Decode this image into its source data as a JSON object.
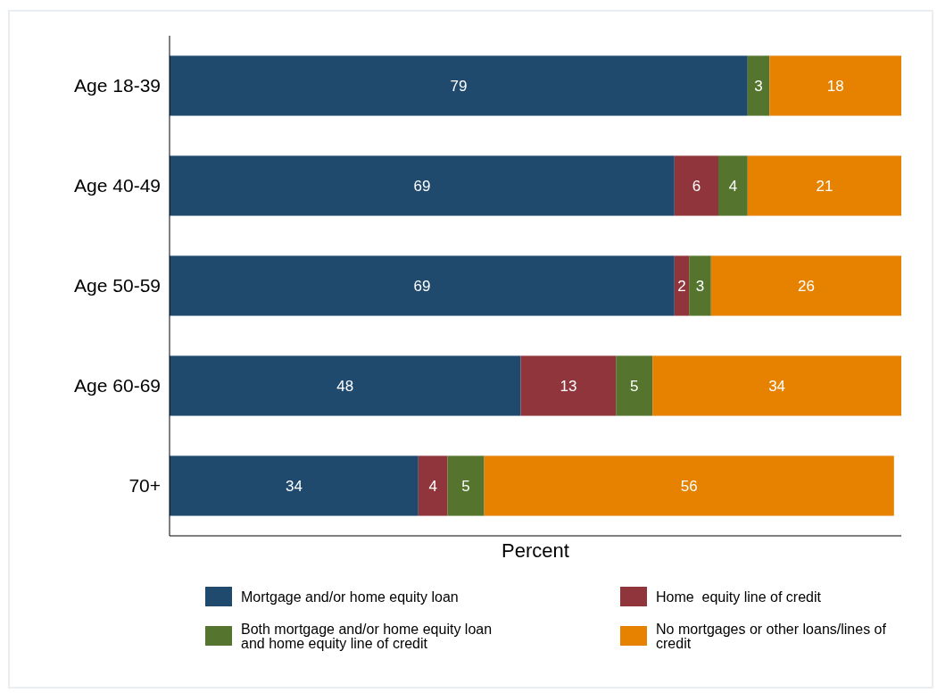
{
  "chart_data": {
    "type": "bar",
    "orientation": "horizontal",
    "stacked": true,
    "xlabel": "Percent",
    "categories": [
      "Age 18-39",
      "Age 40-49",
      "Age 50-59",
      "Age 60-69",
      "70+"
    ],
    "series": [
      {
        "name": "Mortgage and/or home equity loan",
        "color": "#1f4a6e",
        "values": [
          79,
          69,
          69,
          48,
          34
        ]
      },
      {
        "name": "Home  equity line of credit",
        "color": "#90353b",
        "values": [
          null,
          6,
          2,
          13,
          4
        ]
      },
      {
        "name": "Both mortgage and/or home equity loan and home equity line of credit",
        "color": "#55752f",
        "values": [
          3,
          4,
          3,
          5,
          5
        ]
      },
      {
        "name": "No mortgages or other loans/lines of credit",
        "color": "#e68200",
        "values": [
          18,
          21,
          26,
          34,
          56
        ]
      }
    ],
    "data_labels": true,
    "legend": "bottom",
    "grid": false
  }
}
